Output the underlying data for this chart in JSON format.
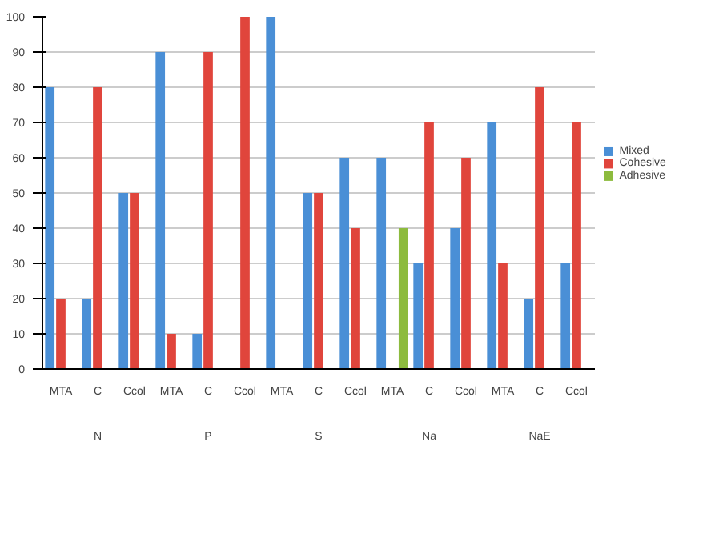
{
  "chart_data": {
    "type": "bar",
    "categories": [
      "MTA",
      "C",
      "Ccol",
      "MTA",
      "C",
      "Ccol",
      "MTA",
      "C",
      "Ccol",
      "MTA",
      "C",
      "Ccol",
      "MTA",
      "C",
      "Ccol"
    ],
    "series": [
      {
        "name": "Mixed",
        "color": "#4a8fd6",
        "values": [
          80,
          20,
          50,
          90,
          10,
          0,
          100,
          50,
          60,
          60,
          30,
          40,
          70,
          20,
          30
        ]
      },
      {
        "name": "Cohesive",
        "color": "#e0453c",
        "values": [
          20,
          80,
          50,
          10,
          90,
          100,
          0,
          50,
          40,
          0,
          70,
          60,
          30,
          80,
          70
        ]
      },
      {
        "name": "Adhesive",
        "color": "#8dbb3e",
        "values": [
          0,
          0,
          0,
          0,
          0,
          0,
          0,
          0,
          0,
          40,
          0,
          0,
          0,
          0,
          0
        ]
      }
    ],
    "ylim": [
      0,
      100
    ],
    "yticks": [
      0,
      10,
      20,
      30,
      40,
      50,
      60,
      70,
      80,
      90,
      100
    ],
    "grid": "y",
    "legend": "right",
    "annotations": [
      "N",
      "P",
      "S",
      "Na",
      "NaE"
    ]
  }
}
